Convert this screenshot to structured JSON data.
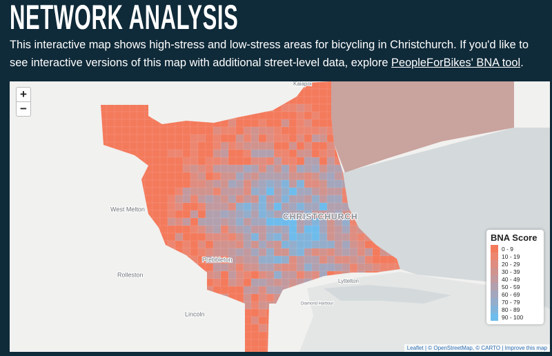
{
  "header": {
    "title": "NETWORK ANALYSIS",
    "description": "This interactive map shows high-stress and low-stress areas for bicycling in Christchurch. If you'd like to see interactive versions of this map with additional street-level data, explore ",
    "link": "PeopleForBikes' BNA tool",
    "description_end": "."
  },
  "map": {
    "zoom_in": "+",
    "zoom_out": "−",
    "places": [
      {
        "label": "Kaiapoi"
      },
      {
        "label": "West Melton"
      },
      {
        "label": "CHRISTCHURCH"
      },
      {
        "label": "Prebbleton"
      },
      {
        "label": "Rolleston"
      },
      {
        "label": "Lyttelton"
      },
      {
        "label": "Diamond Harbour"
      },
      {
        "label": "Lincoln"
      }
    ],
    "legend": {
      "title": "BNA Score",
      "items": [
        {
          "label": "0 - 9",
          "color": "#f47a5c"
        },
        {
          "label": "10 - 19",
          "color": "#ec8670"
        },
        {
          "label": "20 - 29",
          "color": "#df8d80"
        },
        {
          "label": "30 - 39",
          "color": "#d0938e"
        },
        {
          "label": "40 - 49",
          "color": "#c2999e"
        },
        {
          "label": "50 - 59",
          "color": "#b2a0ae"
        },
        {
          "label": "60 - 69",
          "color": "#a3a6bd"
        },
        {
          "label": "70 - 79",
          "color": "#93adcb"
        },
        {
          "label": "80 - 89",
          "color": "#82b4db"
        },
        {
          "label": "90 - 100",
          "color": "#6ebcec"
        }
      ]
    },
    "attribution": "Leaflet | © OpenStreetMap, © CARTO | Improve this map"
  }
}
